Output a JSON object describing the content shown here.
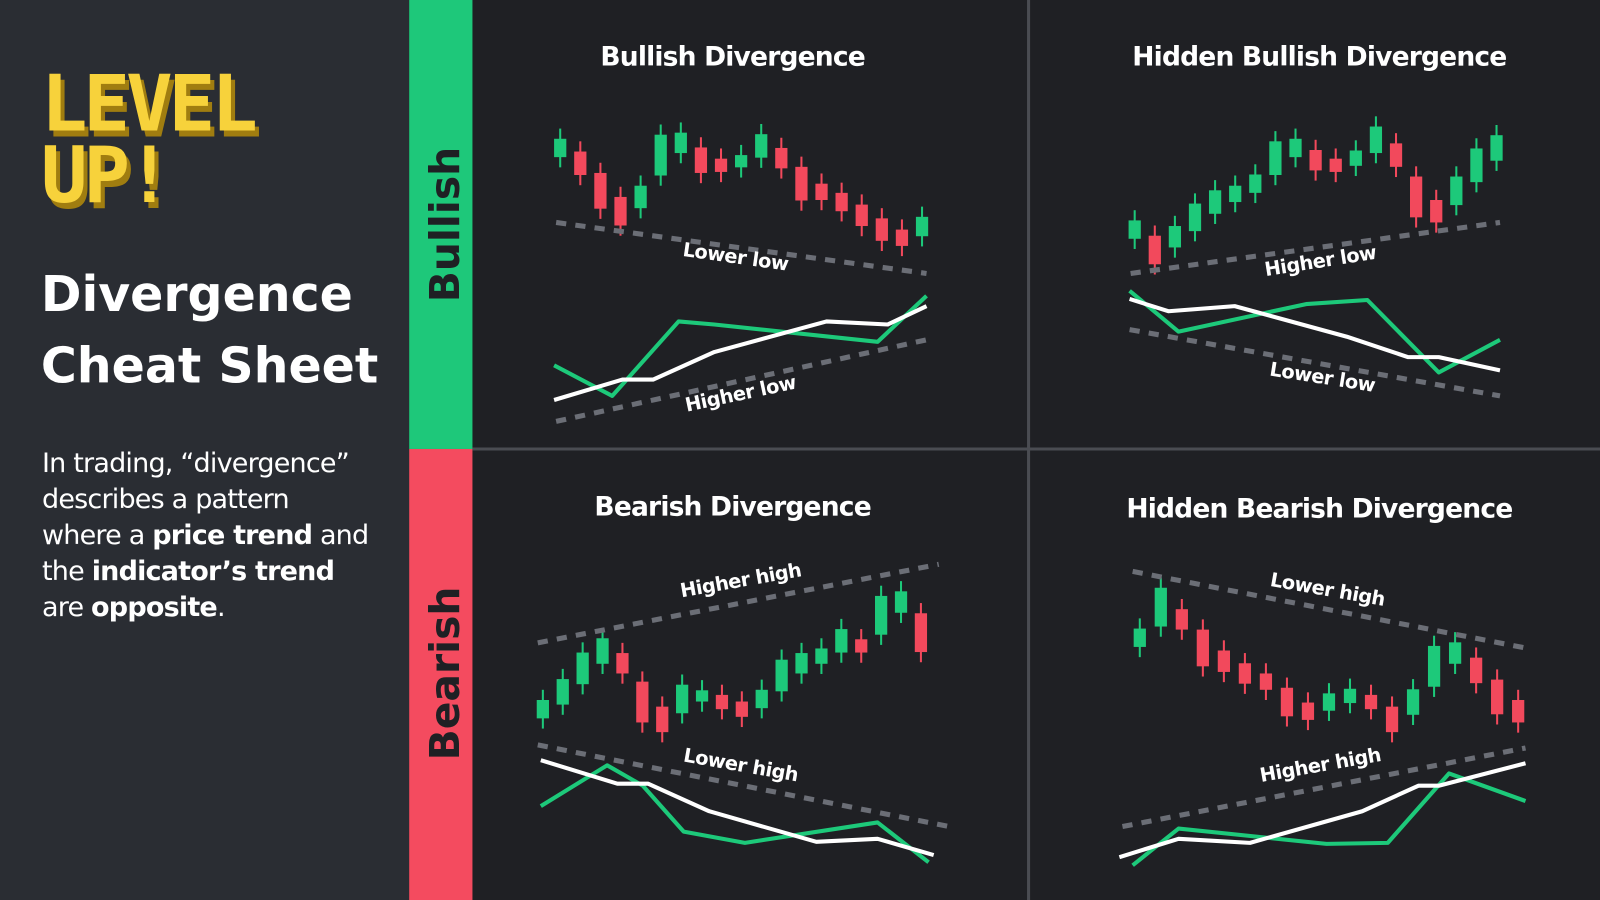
{
  "logo": {
    "line1": "LEVEL",
    "line2": "UP!"
  },
  "title": {
    "line1": "Divergence",
    "line2": "Cheat Sheet"
  },
  "description": [
    "In trading, “divergence” describes a pattern where a ",
    "price trend",
    " and the ",
    "indicator’s trend",
    " are ",
    "opposite",
    "."
  ],
  "rows": {
    "bullish": "Bullish",
    "bearish": "Bearish"
  },
  "panels": [
    {
      "title": "Bullish Divergence",
      "price_label": "Lower low",
      "indicator_label": "Higher low"
    },
    {
      "title": "Hidden Bullish Divergence",
      "price_label": "Higher low",
      "indicator_label": "Lower low"
    },
    {
      "title": "Bearish Divergence",
      "price_label": "Higher high",
      "indicator_label": "Lower high"
    },
    {
      "title": "Hidden Bearish Divergence",
      "price_label": "Lower high",
      "indicator_label": "Higher high"
    }
  ]
}
